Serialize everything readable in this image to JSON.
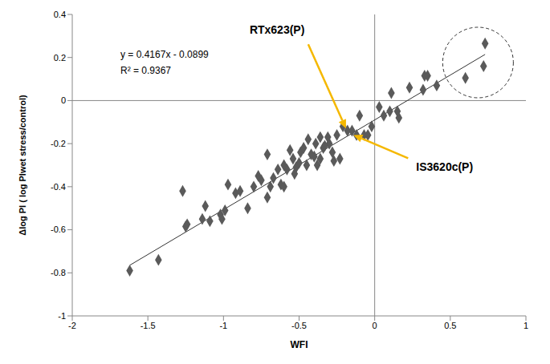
{
  "chart_data": {
    "type": "scatter",
    "x_label": "WFI",
    "y_label": "Δlog PI ( log PIwet stress/control)",
    "x": [
      -1.62,
      -1.43,
      -1.27,
      -1.25,
      -1.24,
      -1.12,
      -1.14,
      -1.09,
      -1.02,
      -1.01,
      -0.99,
      -0.97,
      -0.92,
      -0.89,
      -0.84,
      -0.8,
      -0.77,
      -0.75,
      -0.71,
      -0.71,
      -0.69,
      -0.67,
      -0.64,
      -0.62,
      -0.6,
      -0.58,
      -0.56,
      -0.54,
      -0.53,
      -0.5,
      -0.49,
      -0.45,
      -0.44,
      -0.4,
      -0.39,
      -0.38,
      -0.36,
      -0.34,
      -0.31,
      -0.3,
      -0.28,
      -0.27,
      -0.25,
      -0.23,
      -0.21,
      -0.18,
      -0.15,
      -0.12,
      -0.1,
      -0.07,
      -0.045,
      -0.02,
      0.03,
      0.06,
      0.1,
      0.11,
      0.15,
      0.16,
      0.23,
      0.32,
      0.33,
      0.35,
      0.41,
      0.6,
      0.72,
      0.73,
      -0.33,
      -0.42,
      -0.47,
      -0.36,
      -0.6,
      -0.52
    ],
    "values": [
      -0.79,
      -0.74,
      -0.42,
      -0.585,
      -0.575,
      -0.49,
      -0.55,
      -0.56,
      -0.53,
      -0.55,
      -0.51,
      -0.39,
      -0.43,
      -0.42,
      -0.5,
      -0.4,
      -0.35,
      -0.37,
      -0.25,
      -0.45,
      -0.4,
      -0.36,
      -0.32,
      -0.39,
      -0.4,
      -0.32,
      -0.23,
      -0.27,
      -0.34,
      -0.29,
      -0.24,
      -0.3,
      -0.18,
      -0.26,
      -0.2,
      -0.3,
      -0.27,
      -0.22,
      -0.17,
      -0.2,
      -0.24,
      -0.28,
      -0.16,
      -0.27,
      -0.12,
      -0.14,
      -0.14,
      -0.16,
      -0.07,
      -0.16,
      -0.16,
      -0.12,
      -0.03,
      -0.07,
      -0.05,
      0.035,
      -0.05,
      -0.08,
      0.06,
      0.05,
      0.115,
      0.115,
      0.07,
      0.105,
      0.16,
      0.265,
      -0.21,
      -0.25,
      -0.22,
      -0.17,
      -0.3,
      -0.31
    ],
    "color": "#5a5a5a",
    "marker": "diamond",
    "xlim": [
      -2,
      1
    ],
    "xticks": [
      -2,
      -1.5,
      -1,
      -0.5,
      0,
      0.5,
      1
    ],
    "ylim": [
      -1,
      0.4
    ],
    "yticks": [
      -1,
      -0.8,
      -0.6,
      -0.4,
      -0.2,
      0,
      0.2,
      0.4
    ],
    "grid": false,
    "trendline": {
      "equation": "y = 0.4167x - 0.0899",
      "r_squared_label": "R² = 0.9367",
      "slope": 0.4167,
      "intercept": -0.0899
    },
    "annotations": [
      {
        "text": "RTx623(P)",
        "x": -0.19,
        "y": -0.13
      },
      {
        "text": "IS3620c(P)",
        "x": -0.14,
        "y": -0.16
      }
    ]
  }
}
